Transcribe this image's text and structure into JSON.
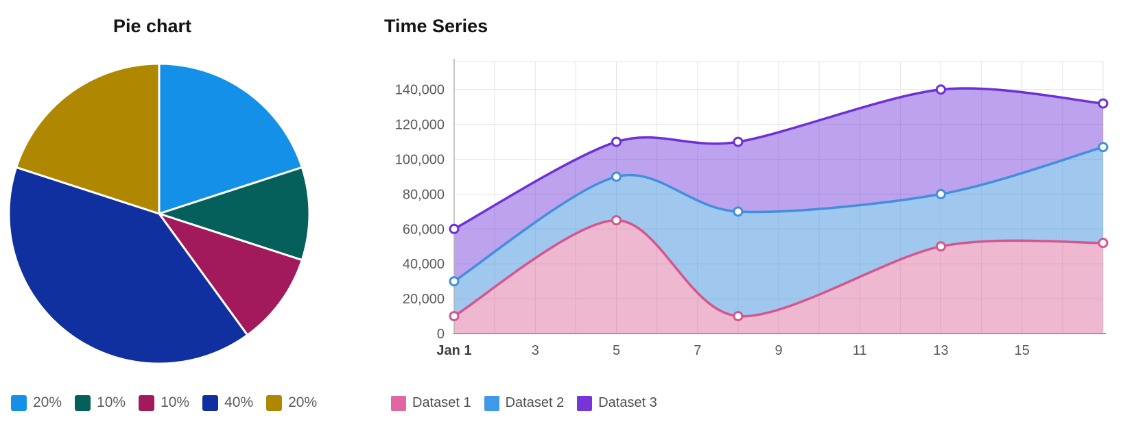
{
  "chart_data": [
    {
      "type": "pie",
      "title": "Pie chart",
      "labels": [
        "20%",
        "10%",
        "10%",
        "40%",
        "20%"
      ],
      "values": [
        20,
        10,
        10,
        40,
        20
      ],
      "colors": [
        "#1590e8",
        "#05605b",
        "#a21a5c",
        "#11309f",
        "#b08700"
      ],
      "start_angle_deg": 0,
      "direction": "clockwise",
      "legend_position": "bottom"
    },
    {
      "type": "area",
      "title": "Time Series",
      "x": [
        1,
        5,
        8,
        13,
        17
      ],
      "xlim": [
        1,
        17
      ],
      "ylim": [
        0,
        156000
      ],
      "x_ticks": [
        1,
        3,
        5,
        7,
        9,
        11,
        13,
        15
      ],
      "x_tick_labels": [
        "Jan 1",
        "3",
        "5",
        "7",
        "9",
        "11",
        "13",
        "15"
      ],
      "y_ticks": [
        0,
        20000,
        40000,
        60000,
        80000,
        100000,
        120000,
        140000
      ],
      "y_tick_labels": [
        "0",
        "20,000",
        "40,000",
        "60,000",
        "80,000",
        "100,000",
        "120,000",
        "140,000"
      ],
      "grid": true,
      "curve": "smooth",
      "fill_mode": "between-series",
      "legend_position": "bottom",
      "series": [
        {
          "name": "Dataset 1",
          "color": "#d4568e",
          "legend_color": "#e0679f",
          "fill_alpha": 0.42,
          "values": [
            10000,
            65000,
            10000,
            50000,
            52000
          ]
        },
        {
          "name": "Dataset 2",
          "color": "#418fdd",
          "legend_color": "#3e9ae9",
          "fill_alpha": 0.5,
          "values": [
            30000,
            90000,
            70000,
            80000,
            107000
          ]
        },
        {
          "name": "Dataset 3",
          "color": "#6d30d8",
          "legend_color": "#7635d9",
          "fill_alpha": 0.45,
          "values": [
            60000,
            110000,
            110000,
            140000,
            132000
          ]
        }
      ]
    }
  ]
}
